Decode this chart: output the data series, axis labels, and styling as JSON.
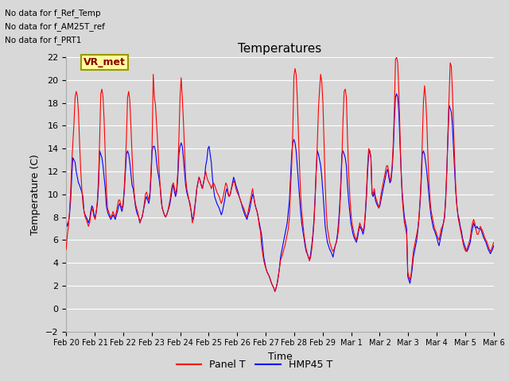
{
  "title": "Temperatures",
  "xlabel": "Time",
  "ylabel": "Temperature (C)",
  "ylim": [
    -2,
    22
  ],
  "yticks": [
    -2,
    0,
    2,
    4,
    6,
    8,
    10,
    12,
    14,
    16,
    18,
    20,
    22
  ],
  "line1_color": "red",
  "line1_label": "Panel T",
  "line2_color": "blue",
  "line2_label": "HMP45 T",
  "legend_note_lines": [
    "No data for f_Ref_Temp",
    "No data for f_AM25T_ref",
    "No data for f_PRT1"
  ],
  "vr_met_label": "VR_met",
  "background_color": "#d8d8d8",
  "plot_bg_color": "#d8d8d8",
  "grid_color": "white",
  "tick_labels": [
    "Feb 20",
    "Feb 21",
    "Feb 22",
    "Feb 23",
    "Feb 24",
    "Feb 25",
    "Feb 26",
    "Feb 27",
    "Feb 28",
    "Feb 29",
    "Mar 1",
    "Mar 2",
    "Mar 3",
    "Mar 4",
    "Mar 5",
    "Mar 6"
  ],
  "num_days": 15,
  "panel_t": [
    5.2,
    6.4,
    7.2,
    8.5,
    10.2,
    12.8,
    14.5,
    16.2,
    18.5,
    19.0,
    18.6,
    17.2,
    14.5,
    12.2,
    10.5,
    9.2,
    8.5,
    8.0,
    7.8,
    7.5,
    7.2,
    7.5,
    8.2,
    8.8,
    8.5,
    8.0,
    7.8,
    8.5,
    9.5,
    11.5,
    14.8,
    18.8,
    19.2,
    18.5,
    16.5,
    13.5,
    10.5,
    8.8,
    8.5,
    8.2,
    8.0,
    8.2,
    8.5,
    8.2,
    8.0,
    8.5,
    9.0,
    9.5,
    9.5,
    9.0,
    8.8,
    9.2,
    10.5,
    12.5,
    15.0,
    18.5,
    19.0,
    18.2,
    16.0,
    13.5,
    11.5,
    10.0,
    9.2,
    8.8,
    8.5,
    8.0,
    7.5,
    7.8,
    8.0,
    8.5,
    9.2,
    10.0,
    10.2,
    9.8,
    9.5,
    10.2,
    12.0,
    14.5,
    20.5,
    18.5,
    17.8,
    16.2,
    14.5,
    12.5,
    11.0,
    9.5,
    8.8,
    8.5,
    8.2,
    8.0,
    8.2,
    8.5,
    9.0,
    9.5,
    10.2,
    10.8,
    11.0,
    10.5,
    10.0,
    10.5,
    12.0,
    15.0,
    18.5,
    20.2,
    18.5,
    16.5,
    14.0,
    11.5,
    10.5,
    10.0,
    9.5,
    9.2,
    8.5,
    7.5,
    7.8,
    8.5,
    9.5,
    10.5,
    11.0,
    11.5,
    11.2,
    10.8,
    10.5,
    11.0,
    11.5,
    12.0,
    11.5,
    11.2,
    11.0,
    10.8,
    10.5,
    10.8,
    11.0,
    10.8,
    10.5,
    10.2,
    10.0,
    9.8,
    9.5,
    9.2,
    9.5,
    10.0,
    10.5,
    11.0,
    10.8,
    10.2,
    9.8,
    10.0,
    10.5,
    10.8,
    11.2,
    11.0,
    10.5,
    10.2,
    10.0,
    9.8,
    9.5,
    9.2,
    9.0,
    8.8,
    8.5,
    8.2,
    8.0,
    8.5,
    9.0,
    9.5,
    10.0,
    10.5,
    9.8,
    9.2,
    8.8,
    8.5,
    8.0,
    7.2,
    6.8,
    5.5,
    4.8,
    4.2,
    3.8,
    3.5,
    3.2,
    3.0,
    2.8,
    2.5,
    2.2,
    2.0,
    1.8,
    1.5,
    1.8,
    2.2,
    2.8,
    3.5,
    4.2,
    4.5,
    4.8,
    5.2,
    5.5,
    6.0,
    6.5,
    7.0,
    8.0,
    10.5,
    12.5,
    15.5,
    20.3,
    21.0,
    20.5,
    18.5,
    15.5,
    12.5,
    10.0,
    8.5,
    7.5,
    6.5,
    5.8,
    5.2,
    4.8,
    4.5,
    4.2,
    4.5,
    5.2,
    6.2,
    7.5,
    9.5,
    12.0,
    14.5,
    17.5,
    19.2,
    20.5,
    19.8,
    18.0,
    14.5,
    11.0,
    8.5,
    7.0,
    6.5,
    5.8,
    5.5,
    5.2,
    5.0,
    5.2,
    5.5,
    5.8,
    6.2,
    7.0,
    8.5,
    10.5,
    13.0,
    16.5,
    19.0,
    19.2,
    18.5,
    15.0,
    12.0,
    10.0,
    8.5,
    7.5,
    7.0,
    6.5,
    6.2,
    6.0,
    6.5,
    7.0,
    7.5,
    7.2,
    7.0,
    6.8,
    7.2,
    8.5,
    10.2,
    12.5,
    14.0,
    13.8,
    13.2,
    10.2,
    10.0,
    10.5,
    9.8,
    9.5,
    9.2,
    8.8,
    9.2,
    10.0,
    10.5,
    11.0,
    11.5,
    12.0,
    12.5,
    12.5,
    11.8,
    11.2,
    11.5,
    12.5,
    14.5,
    17.5,
    21.8,
    22.0,
    21.5,
    19.0,
    15.5,
    12.0,
    9.8,
    8.5,
    7.5,
    7.0,
    6.5,
    3.2,
    2.8,
    2.5,
    3.0,
    4.0,
    5.0,
    5.5,
    6.0,
    6.5,
    7.0,
    8.0,
    9.5,
    11.5,
    14.5,
    18.0,
    19.5,
    18.5,
    16.5,
    13.5,
    11.0,
    9.5,
    8.5,
    8.0,
    7.5,
    7.0,
    6.8,
    6.5,
    6.2,
    6.0,
    6.5,
    7.0,
    7.2,
    7.5,
    8.0,
    9.5,
    12.0,
    15.5,
    18.5,
    21.5,
    21.2,
    19.0,
    16.0,
    13.0,
    10.5,
    9.0,
    8.0,
    7.5,
    7.0,
    6.5,
    6.0,
    5.5,
    5.2,
    5.0,
    5.2,
    5.5,
    5.8,
    6.2,
    7.0,
    7.5,
    7.8,
    7.5,
    7.0,
    6.5,
    6.5,
    6.8,
    7.2,
    7.0,
    6.8,
    6.5,
    6.2,
    6.0,
    5.8,
    5.5,
    5.2,
    5.0,
    5.2,
    5.5,
    5.8
  ],
  "hmp45_t": [
    7.8,
    7.2,
    7.5,
    8.2,
    9.5,
    11.5,
    13.2,
    13.0,
    12.8,
    12.0,
    11.5,
    11.0,
    10.8,
    10.5,
    10.2,
    9.8,
    8.5,
    8.2,
    8.0,
    7.8,
    7.5,
    7.8,
    8.5,
    9.0,
    8.8,
    8.2,
    8.0,
    8.5,
    9.2,
    10.8,
    13.8,
    13.5,
    13.2,
    12.5,
    11.5,
    10.5,
    9.0,
    8.5,
    8.2,
    8.0,
    7.8,
    8.0,
    8.2,
    8.0,
    7.8,
    8.2,
    8.5,
    9.0,
    9.2,
    8.8,
    8.5,
    9.0,
    10.2,
    11.8,
    13.5,
    13.8,
    13.5,
    12.8,
    11.8,
    10.8,
    10.5,
    9.8,
    9.0,
    8.5,
    8.2,
    8.0,
    7.5,
    7.8,
    8.0,
    8.5,
    9.0,
    9.5,
    9.8,
    9.5,
    9.2,
    9.8,
    11.5,
    13.8,
    14.2,
    14.2,
    13.8,
    12.8,
    12.0,
    11.5,
    10.8,
    9.8,
    8.8,
    8.5,
    8.2,
    8.0,
    8.2,
    8.5,
    8.8,
    9.2,
    9.8,
    10.5,
    10.8,
    10.2,
    9.8,
    10.2,
    11.5,
    13.5,
    14.2,
    14.5,
    14.2,
    13.2,
    12.0,
    10.8,
    10.2,
    9.8,
    9.5,
    9.0,
    8.5,
    7.8,
    8.0,
    8.8,
    9.5,
    10.5,
    11.0,
    11.5,
    11.2,
    10.8,
    10.5,
    11.0,
    11.5,
    12.5,
    13.0,
    14.0,
    14.2,
    13.5,
    12.8,
    11.5,
    10.5,
    9.8,
    9.5,
    9.2,
    9.0,
    8.8,
    8.5,
    8.2,
    8.5,
    9.0,
    9.5,
    10.2,
    10.5,
    10.0,
    9.8,
    10.0,
    10.5,
    11.0,
    11.5,
    11.2,
    10.8,
    10.5,
    10.2,
    9.8,
    9.5,
    9.2,
    8.8,
    8.5,
    8.2,
    8.0,
    7.8,
    8.2,
    8.5,
    9.0,
    9.5,
    10.0,
    9.8,
    9.2,
    8.8,
    8.5,
    8.0,
    7.5,
    7.0,
    6.5,
    5.5,
    4.5,
    4.0,
    3.5,
    3.2,
    3.0,
    2.8,
    2.5,
    2.2,
    2.0,
    1.8,
    1.5,
    1.8,
    2.2,
    2.8,
    3.5,
    4.5,
    5.0,
    5.5,
    6.0,
    6.5,
    7.0,
    7.5,
    8.5,
    9.5,
    11.5,
    13.5,
    14.5,
    14.8,
    14.5,
    13.8,
    12.5,
    11.2,
    9.8,
    8.5,
    7.5,
    6.8,
    6.2,
    5.5,
    5.0,
    4.8,
    4.5,
    4.2,
    4.8,
    5.5,
    6.5,
    7.8,
    9.8,
    12.2,
    13.8,
    13.5,
    13.0,
    12.5,
    11.5,
    10.2,
    8.8,
    7.2,
    6.5,
    5.8,
    5.5,
    5.2,
    5.0,
    4.8,
    4.5,
    5.0,
    5.5,
    5.8,
    6.5,
    7.5,
    9.0,
    11.0,
    13.5,
    13.8,
    13.5,
    13.2,
    12.5,
    10.8,
    9.5,
    8.5,
    7.5,
    7.0,
    6.5,
    6.2,
    6.0,
    5.8,
    6.2,
    6.8,
    7.2,
    7.0,
    6.8,
    6.5,
    7.0,
    8.2,
    9.8,
    12.0,
    13.5,
    13.8,
    13.2,
    10.0,
    9.8,
    10.2,
    9.5,
    9.2,
    9.0,
    8.8,
    9.0,
    9.5,
    10.0,
    10.5,
    11.0,
    11.5,
    12.0,
    12.2,
    11.5,
    11.0,
    11.2,
    12.2,
    13.8,
    16.5,
    18.5,
    18.8,
    18.5,
    17.2,
    14.5,
    12.2,
    10.2,
    9.0,
    8.0,
    7.5,
    7.0,
    2.8,
    2.5,
    2.2,
    2.8,
    3.5,
    4.5,
    5.0,
    5.5,
    6.0,
    6.8,
    7.8,
    9.2,
    11.0,
    13.5,
    13.8,
    13.5,
    12.8,
    12.0,
    11.0,
    9.8,
    8.8,
    8.0,
    7.5,
    7.0,
    6.8,
    6.5,
    6.2,
    5.8,
    5.5,
    6.0,
    6.5,
    7.0,
    7.5,
    8.2,
    9.8,
    12.2,
    15.0,
    17.8,
    17.5,
    17.2,
    16.0,
    14.0,
    12.0,
    10.2,
    9.0,
    8.2,
    7.8,
    7.2,
    6.8,
    6.2,
    5.8,
    5.5,
    5.2,
    5.0,
    5.2,
    5.5,
    5.8,
    6.5,
    7.0,
    7.5,
    7.2,
    7.0,
    7.2,
    7.0,
    7.0,
    7.0,
    6.8,
    6.5,
    6.2,
    6.0,
    5.8,
    5.5,
    5.2,
    5.0,
    4.8,
    5.0,
    5.2,
    5.5
  ]
}
